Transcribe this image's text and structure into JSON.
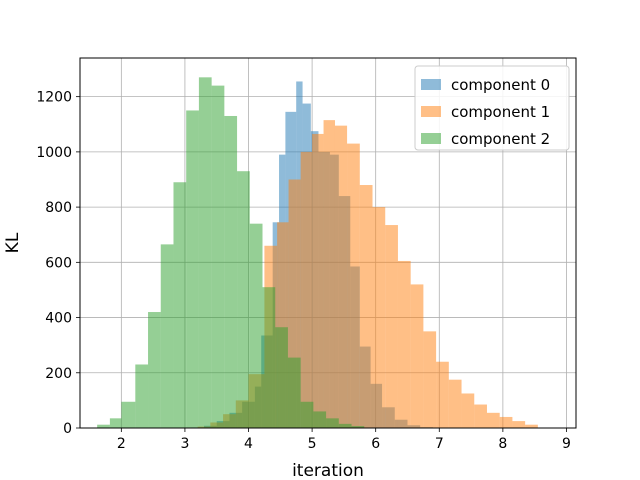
{
  "chart_data": {
    "type": "histogram",
    "xlabel": "iteration",
    "ylabel": "KL",
    "xlim": [
      1.35,
      9.15
    ],
    "ylim": [
      0,
      1340
    ],
    "xticks": [
      2,
      3,
      4,
      5,
      6,
      7,
      8,
      9
    ],
    "yticks": [
      0,
      200,
      400,
      600,
      800,
      1000,
      1200
    ],
    "grid": true,
    "legend_position": "top-right",
    "alpha": 0.5,
    "series": [
      {
        "name": "component 0",
        "color": "#1f77b4",
        "bins": [
          [
            3.1,
            3.3,
            2
          ],
          [
            3.3,
            3.5,
            8
          ],
          [
            3.5,
            3.7,
            25
          ],
          [
            3.7,
            3.9,
            55
          ],
          [
            3.9,
            4.1,
            95
          ],
          [
            4.1,
            4.2,
            150
          ],
          [
            4.2,
            4.38,
            335
          ],
          [
            4.38,
            4.48,
            745
          ],
          [
            4.48,
            4.58,
            990
          ],
          [
            4.58,
            4.75,
            1145
          ],
          [
            4.75,
            4.85,
            1255
          ],
          [
            4.85,
            4.98,
            1175
          ],
          [
            4.98,
            5.1,
            1075
          ],
          [
            5.1,
            5.28,
            1000
          ],
          [
            5.28,
            5.42,
            990
          ],
          [
            5.42,
            5.6,
            840
          ],
          [
            5.6,
            5.75,
            585
          ],
          [
            5.75,
            5.92,
            295
          ],
          [
            5.92,
            6.1,
            160
          ],
          [
            6.1,
            6.3,
            75
          ],
          [
            6.3,
            6.5,
            30
          ],
          [
            6.5,
            6.7,
            10
          ],
          [
            6.7,
            6.9,
            3
          ]
        ]
      },
      {
        "name": "component 1",
        "color": "#ff7f0e",
        "bins": [
          [
            3.2,
            3.4,
            5
          ],
          [
            3.4,
            3.6,
            20
          ],
          [
            3.6,
            3.8,
            50
          ],
          [
            3.8,
            4.0,
            100
          ],
          [
            4.0,
            4.25,
            195
          ],
          [
            4.25,
            4.45,
            660
          ],
          [
            4.45,
            4.63,
            745
          ],
          [
            4.63,
            4.82,
            900
          ],
          [
            4.82,
            5.0,
            1000
          ],
          [
            5.0,
            5.18,
            1065
          ],
          [
            5.18,
            5.36,
            1115
          ],
          [
            5.36,
            5.55,
            1095
          ],
          [
            5.55,
            5.75,
            1030
          ],
          [
            5.75,
            5.95,
            880
          ],
          [
            5.95,
            6.15,
            800
          ],
          [
            6.15,
            6.35,
            735
          ],
          [
            6.35,
            6.55,
            605
          ],
          [
            6.55,
            6.75,
            520
          ],
          [
            6.75,
            6.95,
            350
          ],
          [
            6.95,
            7.15,
            240
          ],
          [
            7.15,
            7.35,
            175
          ],
          [
            7.35,
            7.55,
            125
          ],
          [
            7.55,
            7.75,
            85
          ],
          [
            7.75,
            7.95,
            55
          ],
          [
            7.95,
            8.15,
            40
          ],
          [
            8.15,
            8.35,
            25
          ],
          [
            8.35,
            8.55,
            12
          ]
        ]
      },
      {
        "name": "component 2",
        "color": "#2ca02c",
        "bins": [
          [
            1.62,
            1.82,
            12
          ],
          [
            1.82,
            2.0,
            35
          ],
          [
            2.0,
            2.22,
            95
          ],
          [
            2.22,
            2.42,
            230
          ],
          [
            2.42,
            2.62,
            420
          ],
          [
            2.62,
            2.82,
            665
          ],
          [
            2.82,
            3.02,
            890
          ],
          [
            3.02,
            3.22,
            1150
          ],
          [
            3.22,
            3.42,
            1270
          ],
          [
            3.42,
            3.62,
            1240
          ],
          [
            3.62,
            3.82,
            1130
          ],
          [
            3.82,
            4.02,
            930
          ],
          [
            4.02,
            4.22,
            740
          ],
          [
            4.22,
            4.42,
            510
          ],
          [
            4.42,
            4.62,
            365
          ],
          [
            4.62,
            4.82,
            255
          ],
          [
            4.82,
            5.02,
            95
          ],
          [
            5.02,
            5.22,
            60
          ],
          [
            5.22,
            5.42,
            35
          ],
          [
            5.42,
            5.62,
            15
          ],
          [
            5.62,
            5.82,
            7
          ]
        ]
      }
    ]
  }
}
